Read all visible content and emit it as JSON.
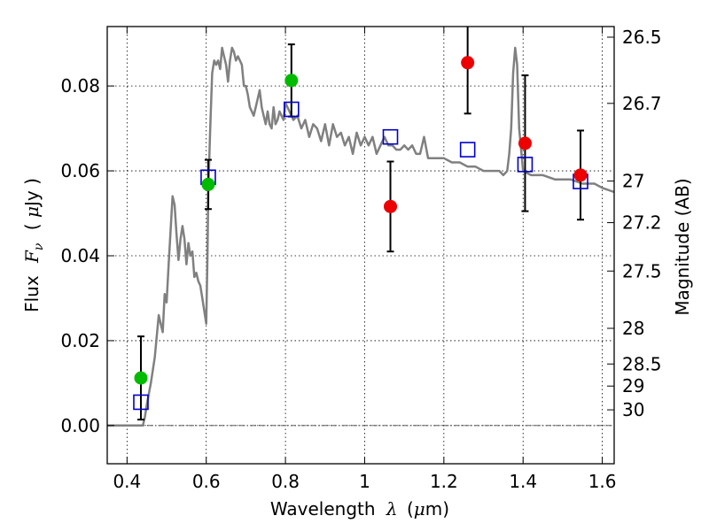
{
  "chart_data": {
    "type": "scatter",
    "title": "",
    "xlabel": {
      "prefix": "Wavelength",
      "symbol": "λ",
      "unit_open": "(",
      "unit_mu": "μ",
      "unit_rest": "m)"
    },
    "ylabel": {
      "prefix": "Flux",
      "symbol": "F",
      "subscript": "ν",
      "unit_open": "(",
      "unit_mu": "μ",
      "unit_rest": "Jy )"
    },
    "y2label": "Magnitude (AB)",
    "xlim": [
      0.35,
      1.63
    ],
    "ylim": [
      -0.009,
      0.094
    ],
    "grid": true,
    "grid_style": "dotted",
    "x_ticks": [
      {
        "value": 0.4,
        "label": "0.4"
      },
      {
        "value": 0.6,
        "label": "0.6"
      },
      {
        "value": 0.8,
        "label": "0.8"
      },
      {
        "value": 1.0,
        "label": "1"
      },
      {
        "value": 1.2,
        "label": "1.2"
      },
      {
        "value": 1.4,
        "label": "1.4"
      },
      {
        "value": 1.6,
        "label": "1.6"
      }
    ],
    "y_ticks": [
      {
        "value": 0.0,
        "label": "0.00"
      },
      {
        "value": 0.02,
        "label": "0.02"
      },
      {
        "value": 0.04,
        "label": "0.04"
      },
      {
        "value": 0.06,
        "label": "0.06"
      },
      {
        "value": 0.08,
        "label": "0.08"
      }
    ],
    "mag_ticks": [
      {
        "value": 0.0915,
        "label": "26.5"
      },
      {
        "value": 0.0759,
        "label": "26.7"
      },
      {
        "value": 0.0576,
        "label": "27"
      },
      {
        "value": 0.0478,
        "label": "27.2"
      },
      {
        "value": 0.0364,
        "label": "27.5"
      },
      {
        "value": 0.0229,
        "label": "28"
      },
      {
        "value": 0.0145,
        "label": "28.5"
      },
      {
        "value": 0.0093,
        "label": "29"
      },
      {
        "value": 0.0037,
        "label": "30"
      }
    ],
    "zero_line": 0.0,
    "model_spectrum": {
      "color": "#808080",
      "x": [
        0.35,
        0.43,
        0.44,
        0.445,
        0.45,
        0.46,
        0.47,
        0.48,
        0.485,
        0.49,
        0.495,
        0.5,
        0.505,
        0.51,
        0.515,
        0.52,
        0.525,
        0.53,
        0.535,
        0.54,
        0.545,
        0.55,
        0.555,
        0.56,
        0.565,
        0.57,
        0.575,
        0.58,
        0.585,
        0.59,
        0.595,
        0.6,
        0.603,
        0.605,
        0.61,
        0.615,
        0.62,
        0.625,
        0.63,
        0.635,
        0.64,
        0.645,
        0.65,
        0.655,
        0.66,
        0.665,
        0.67,
        0.675,
        0.68,
        0.685,
        0.69,
        0.695,
        0.7,
        0.705,
        0.71,
        0.715,
        0.72,
        0.725,
        0.73,
        0.735,
        0.74,
        0.745,
        0.75,
        0.755,
        0.76,
        0.765,
        0.77,
        0.775,
        0.78,
        0.785,
        0.79,
        0.795,
        0.8,
        0.81,
        0.82,
        0.83,
        0.84,
        0.85,
        0.86,
        0.87,
        0.88,
        0.89,
        0.9,
        0.91,
        0.92,
        0.93,
        0.94,
        0.95,
        0.96,
        0.97,
        0.98,
        0.99,
        1.0,
        1.01,
        1.02,
        1.03,
        1.04,
        1.05,
        1.06,
        1.07,
        1.08,
        1.09,
        1.1,
        1.11,
        1.12,
        1.13,
        1.14,
        1.15,
        1.16,
        1.18,
        1.2,
        1.22,
        1.24,
        1.26,
        1.28,
        1.3,
        1.32,
        1.34,
        1.35,
        1.36,
        1.365,
        1.37,
        1.375,
        1.38,
        1.385,
        1.39,
        1.4,
        1.42,
        1.45,
        1.48,
        1.5,
        1.52,
        1.55,
        1.58,
        1.6,
        1.63
      ],
      "y": [
        0.0,
        0.0,
        0.0,
        0.002,
        0.005,
        0.01,
        0.016,
        0.026,
        0.024,
        0.022,
        0.031,
        0.029,
        0.038,
        0.046,
        0.054,
        0.052,
        0.045,
        0.039,
        0.044,
        0.047,
        0.044,
        0.038,
        0.043,
        0.04,
        0.041,
        0.035,
        0.036,
        0.034,
        0.033,
        0.03,
        0.027,
        0.024,
        0.04,
        0.055,
        0.07,
        0.083,
        0.086,
        0.085,
        0.086,
        0.084,
        0.089,
        0.087,
        0.085,
        0.081,
        0.086,
        0.089,
        0.088,
        0.086,
        0.087,
        0.086,
        0.085,
        0.08,
        0.08,
        0.078,
        0.075,
        0.074,
        0.073,
        0.075,
        0.077,
        0.079,
        0.075,
        0.073,
        0.071,
        0.074,
        0.071,
        0.07,
        0.075,
        0.071,
        0.072,
        0.074,
        0.073,
        0.072,
        0.076,
        0.074,
        0.072,
        0.073,
        0.07,
        0.072,
        0.068,
        0.071,
        0.07,
        0.067,
        0.071,
        0.066,
        0.071,
        0.068,
        0.069,
        0.066,
        0.068,
        0.064,
        0.069,
        0.066,
        0.068,
        0.066,
        0.068,
        0.064,
        0.066,
        0.068,
        0.066,
        0.066,
        0.065,
        0.065,
        0.066,
        0.065,
        0.066,
        0.064,
        0.064,
        0.068,
        0.063,
        0.063,
        0.063,
        0.062,
        0.062,
        0.061,
        0.061,
        0.06,
        0.06,
        0.06,
        0.059,
        0.06,
        0.064,
        0.07,
        0.083,
        0.089,
        0.085,
        0.07,
        0.06,
        0.059,
        0.059,
        0.058,
        0.058,
        0.058,
        0.057,
        0.057,
        0.056,
        0.055
      ]
    },
    "series": [
      {
        "marker": "open-square",
        "color": "#0000cc",
        "points": [
          {
            "x": 0.435,
            "y": 0.0055
          },
          {
            "x": 0.605,
            "y": 0.0585
          },
          {
            "x": 0.815,
            "y": 0.0745
          },
          {
            "x": 1.065,
            "y": 0.068
          },
          {
            "x": 1.26,
            "y": 0.065
          },
          {
            "x": 1.405,
            "y": 0.0615
          },
          {
            "x": 1.545,
            "y": 0.0575
          }
        ]
      },
      {
        "marker": "filled-circle",
        "color": "#00bb00",
        "points": [
          {
            "x": 0.435,
            "y": 0.0112,
            "err": 0.0098
          },
          {
            "x": 0.605,
            "y": 0.0568,
            "err": 0.0058
          },
          {
            "x": 0.815,
            "y": 0.0813,
            "err": 0.0085
          }
        ]
      },
      {
        "marker": "filled-circle",
        "color": "#ee0000",
        "points": [
          {
            "x": 1.065,
            "y": 0.0516,
            "err": 0.0106
          },
          {
            "x": 1.26,
            "y": 0.0855,
            "err": 0.012
          },
          {
            "x": 1.405,
            "y": 0.0665,
            "err": 0.016
          },
          {
            "x": 1.545,
            "y": 0.059,
            "err": 0.0105
          }
        ]
      }
    ]
  }
}
